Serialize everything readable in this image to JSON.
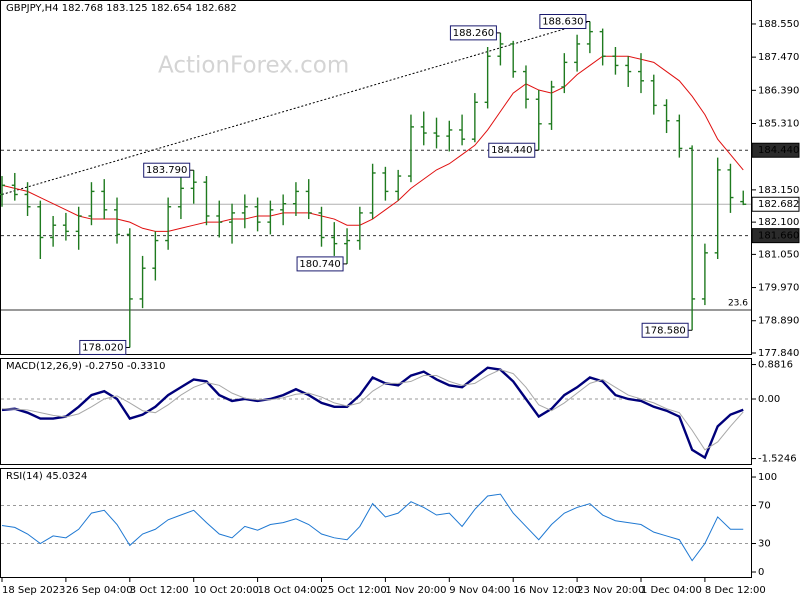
{
  "watermark": "ActionForex.com",
  "chart_data": [
    {
      "type": "ohlc",
      "title": "GBPJPY,H4  182.768 183.125 182.654 182.682",
      "categories": [
        "18 Sep 2023",
        null,
        null,
        null,
        null,
        "26 Sep 04:00",
        null,
        null,
        null,
        null,
        "3 Oct 12:00",
        null,
        null,
        null,
        null,
        "10 Oct 20:00",
        null,
        null,
        null,
        null,
        "18 Oct 04:00",
        null,
        null,
        null,
        null,
        "25 Oct 12:00",
        null,
        null,
        null,
        null,
        "1 Nov 20:00",
        null,
        null,
        null,
        null,
        "9 Nov 04:00",
        null,
        null,
        null,
        null,
        "16 Nov 12:00",
        null,
        null,
        null,
        null,
        "23 Nov 20:00",
        null,
        null,
        null,
        null,
        "1 Dec 04:00",
        null,
        null,
        null,
        null,
        "8 Dec 12:00",
        null,
        null,
        null
      ],
      "open": [
        183.0,
        183.3,
        183.0,
        182.6,
        181.6,
        182.0,
        181.8,
        182.3,
        183.1,
        182.5,
        181.7,
        179.6,
        180.6,
        181.5,
        182.6,
        183.2,
        183.4,
        182.3,
        182.1,
        182.4,
        182.6,
        182.1,
        182.5,
        182.7,
        183.1,
        182.4,
        181.6,
        181.4,
        181.5,
        182.4,
        183.7,
        183.1,
        183.6,
        185.2,
        185.0,
        184.9,
        185.1,
        184.8,
        186.0,
        187.5,
        187.9,
        187.0,
        186.1,
        185.3,
        186.5,
        187.3,
        187.9,
        188.3,
        187.5,
        187.2,
        187.0,
        186.7,
        185.9,
        185.4,
        184.5,
        179.6,
        181.1,
        183.8,
        182.768
      ],
      "high": [
        183.6,
        183.7,
        183.4,
        182.8,
        182.3,
        182.4,
        182.6,
        183.4,
        183.5,
        182.9,
        181.9,
        181.0,
        181.8,
        182.9,
        183.6,
        183.79,
        183.6,
        182.8,
        182.7,
        183.0,
        182.9,
        182.8,
        183.0,
        183.4,
        183.5,
        182.6,
        182.1,
        181.9,
        182.6,
        184.0,
        183.9,
        183.8,
        185.6,
        185.7,
        185.5,
        185.4,
        185.6,
        186.3,
        187.8,
        188.26,
        188.0,
        187.2,
        186.4,
        186.7,
        187.6,
        188.2,
        188.63,
        188.4,
        187.8,
        187.5,
        187.6,
        186.9,
        186.1,
        185.6,
        184.6,
        181.4,
        184.2,
        184.0,
        183.125
      ],
      "low": [
        182.6,
        182.8,
        182.3,
        180.9,
        181.3,
        181.5,
        181.2,
        182.0,
        182.2,
        181.4,
        178.02,
        179.3,
        180.2,
        181.2,
        182.2,
        182.7,
        182.0,
        181.6,
        181.4,
        181.9,
        181.8,
        181.7,
        182.0,
        182.3,
        182.2,
        181.3,
        181.0,
        180.74,
        181.2,
        182.2,
        182.8,
        182.8,
        183.4,
        184.6,
        184.5,
        184.4,
        184.6,
        184.7,
        185.8,
        187.2,
        186.8,
        185.8,
        184.44,
        185.1,
        186.3,
        187.0,
        187.6,
        187.2,
        186.9,
        186.5,
        186.3,
        185.6,
        185.0,
        184.2,
        178.58,
        179.4,
        180.9,
        182.4,
        182.654
      ],
      "close": [
        183.3,
        183.0,
        182.6,
        181.6,
        182.0,
        181.8,
        182.3,
        183.1,
        182.5,
        181.7,
        179.6,
        180.6,
        181.5,
        182.6,
        183.2,
        183.4,
        182.3,
        182.1,
        182.4,
        182.6,
        182.1,
        182.5,
        182.7,
        183.1,
        182.4,
        181.6,
        181.4,
        181.5,
        182.4,
        183.7,
        183.1,
        183.6,
        185.2,
        185.0,
        184.9,
        185.1,
        184.8,
        186.0,
        187.5,
        187.9,
        187.0,
        186.1,
        185.3,
        186.5,
        187.3,
        187.9,
        188.3,
        187.5,
        187.2,
        187.0,
        186.7,
        185.9,
        185.4,
        184.5,
        179.6,
        181.1,
        183.8,
        182.9,
        182.682
      ],
      "color": "#1f7a1f",
      "ma": {
        "color": "#e01010",
        "values": [
          183.3,
          183.2,
          183.1,
          182.9,
          182.7,
          182.5,
          182.3,
          182.2,
          182.2,
          182.2,
          182.1,
          181.9,
          181.8,
          181.8,
          181.9,
          182.0,
          182.1,
          182.1,
          182.2,
          182.2,
          182.3,
          182.3,
          182.4,
          182.4,
          182.4,
          182.3,
          182.2,
          182.0,
          182.0,
          182.2,
          182.5,
          182.8,
          183.2,
          183.5,
          183.8,
          184.0,
          184.3,
          184.6,
          185.1,
          185.7,
          186.3,
          186.6,
          186.4,
          186.3,
          186.5,
          186.9,
          187.2,
          187.5,
          187.5,
          187.5,
          187.4,
          187.3,
          187.0,
          186.7,
          186.2,
          185.6,
          184.8,
          184.3,
          183.8
        ]
      },
      "trendline": {
        "values": [
          183.0,
          188.63
        ]
      },
      "annotations": [
        "183.790",
        "188.260",
        "188.630",
        "184.440",
        "180.740",
        "178.020",
        "178.580"
      ],
      "hlines": [
        {
          "value": 184.44,
          "label": "184.440",
          "style": "dashed"
        },
        {
          "value": 182.682,
          "label": "182.682",
          "style": "current"
        },
        {
          "value": 181.66,
          "label": "181.660",
          "style": "dashed"
        },
        {
          "value": 179.24,
          "label": "23.6",
          "style": "fib"
        }
      ],
      "ylim": [
        177.775,
        189.33
      ],
      "yticks": [
        {
          "value": 188.55,
          "label": "188.550"
        },
        {
          "value": 187.47,
          "label": "187.470"
        },
        {
          "value": 186.39,
          "label": "186.390"
        },
        {
          "value": 185.31,
          "label": "185.310"
        },
        {
          "value": 183.15,
          "label": "183.150"
        },
        {
          "value": 182.1,
          "label": "182.100"
        },
        {
          "value": 181.05,
          "label": "181.050"
        },
        {
          "value": 179.97,
          "label": "179.970"
        },
        {
          "value": 178.89,
          "label": "178.890"
        },
        {
          "value": 177.84,
          "label": "177.840"
        }
      ]
    },
    {
      "type": "line",
      "title": "MACD(12,26,9) -0.2750 -0.3310",
      "series": [
        {
          "color": "#00007a",
          "values": [
            -0.28,
            -0.25,
            -0.35,
            -0.5,
            -0.5,
            -0.45,
            -0.2,
            0.1,
            0.2,
            0.0,
            -0.5,
            -0.4,
            -0.2,
            0.1,
            0.3,
            0.5,
            0.45,
            0.1,
            -0.05,
            0.0,
            -0.05,
            0.0,
            0.1,
            0.25,
            0.1,
            -0.1,
            -0.2,
            -0.2,
            0.1,
            0.55,
            0.4,
            0.35,
            0.6,
            0.7,
            0.5,
            0.35,
            0.3,
            0.55,
            0.8,
            0.75,
            0.45,
            0.0,
            -0.45,
            -0.25,
            0.1,
            0.3,
            0.55,
            0.45,
            0.1,
            0.0,
            -0.05,
            -0.2,
            -0.3,
            -0.45,
            -1.3,
            -1.5,
            -0.7,
            -0.4,
            -0.275
          ]
        },
        {
          "color": "#a8a8a8",
          "values": [
            -0.25,
            -0.26,
            -0.28,
            -0.35,
            -0.42,
            -0.46,
            -0.38,
            -0.2,
            0.0,
            0.08,
            -0.1,
            -0.3,
            -0.35,
            -0.15,
            0.1,
            0.3,
            0.42,
            0.35,
            0.15,
            0.02,
            -0.02,
            -0.02,
            0.03,
            0.12,
            0.15,
            0.05,
            -0.1,
            -0.18,
            -0.1,
            0.2,
            0.4,
            0.4,
            0.45,
            0.6,
            0.6,
            0.45,
            0.35,
            0.4,
            0.6,
            0.75,
            0.65,
            0.3,
            -0.15,
            -0.3,
            -0.1,
            0.15,
            0.4,
            0.5,
            0.3,
            0.1,
            0.0,
            -0.1,
            -0.25,
            -0.35,
            -0.8,
            -1.3,
            -1.1,
            -0.7,
            -0.331
          ]
        }
      ],
      "ylim": [
        -1.689,
        1.049
      ],
      "yticks": [
        0.8816,
        {
          "value": 0,
          "label": "0.00"
        },
        -1.5246
      ],
      "grid_ticks": [
        1
      ]
    },
    {
      "type": "line",
      "title": "RSI(14) 45.0324",
      "series": [
        {
          "color": "#1e78d2",
          "values": [
            49,
            47,
            40,
            30,
            38,
            36,
            45,
            62,
            65,
            50,
            28,
            40,
            45,
            55,
            60,
            65,
            52,
            40,
            36,
            48,
            44,
            50,
            52,
            56,
            50,
            40,
            36,
            34,
            48,
            72,
            58,
            62,
            74,
            68,
            60,
            62,
            48,
            66,
            80,
            82,
            62,
            48,
            34,
            50,
            62,
            68,
            72,
            60,
            54,
            52,
            50,
            42,
            38,
            34,
            12,
            30,
            58,
            45,
            45.0324
          ]
        }
      ],
      "ylim": [
        -6.3,
        109.5
      ],
      "yticks": [
        100,
        70,
        30,
        0
      ],
      "grid_ticks": [
        1,
        2
      ]
    }
  ]
}
